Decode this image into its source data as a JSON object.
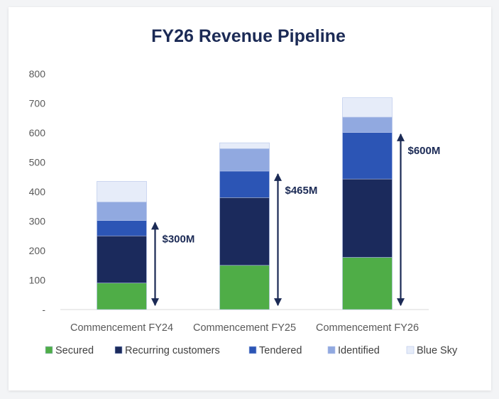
{
  "chart_data": {
    "type": "bar",
    "stacked": true,
    "title": "FY26 Revenue Pipeline",
    "xlabel": "",
    "ylabel": "",
    "ylim": [
      0,
      800
    ],
    "yticks": [
      0,
      100,
      200,
      300,
      400,
      500,
      600,
      700,
      800
    ],
    "ytick_labels": [
      "-",
      "100",
      "200",
      "300",
      "400",
      "500",
      "600",
      "700",
      "800"
    ],
    "grid": false,
    "legend_position": "bottom",
    "categories": [
      "Commencement FY24",
      "Commencement FY25",
      "Commencement FY26"
    ],
    "series": [
      {
        "name": "Secured",
        "color": "#4fad47",
        "values": [
          90,
          150,
          177
        ]
      },
      {
        "name": "Recurring customers",
        "color": "#1b2a5c",
        "values": [
          160,
          230,
          266
        ]
      },
      {
        "name": "Tendered",
        "color": "#2c55b5",
        "values": [
          52,
          90,
          158
        ]
      },
      {
        "name": "Identified",
        "color": "#91a9e0",
        "values": [
          63,
          76,
          52
        ]
      },
      {
        "name": "Blue Sky",
        "color": "#e6ecf9",
        "values": [
          70,
          20,
          66
        ]
      }
    ],
    "annotations": [
      {
        "category": "Commencement FY24",
        "label": "$300M",
        "from": 0,
        "to": 300
      },
      {
        "category": "Commencement FY25",
        "label": "$465M",
        "from": 0,
        "to": 465
      },
      {
        "category": "Commencement FY26",
        "label": "$600M",
        "from": 0,
        "to": 600
      }
    ]
  }
}
